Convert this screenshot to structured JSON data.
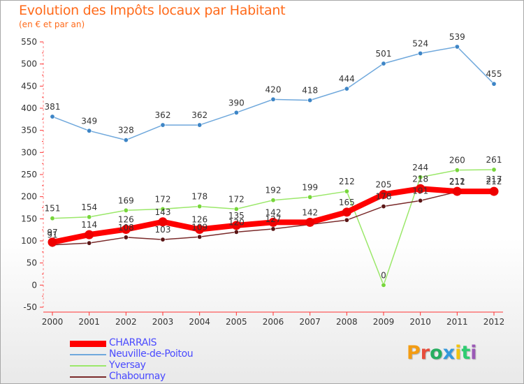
{
  "title": "Evolution des Impôts locaux par Habitant",
  "subtitle": "(en € et par an)",
  "logo": {
    "text": "Proxiti",
    "colors": [
      "#f39c12",
      "#e74c3c",
      "#27ae60",
      "#3498db",
      "#f1c40f",
      "#2ecc71",
      "#9b59b6"
    ]
  },
  "chart_data": {
    "type": "line",
    "x": [
      "2000",
      "2001",
      "2002",
      "2003",
      "2004",
      "2005",
      "2006",
      "2007",
      "2008",
      "2009",
      "2010",
      "2011",
      "2012"
    ],
    "yticks": [
      "-50",
      "0",
      "50",
      "100",
      "150",
      "200",
      "250",
      "300",
      "350",
      "400",
      "450",
      "500",
      "550"
    ],
    "ylim": [
      -50,
      550
    ],
    "grid": false,
    "legend_position": "bottom-left",
    "series": [
      {
        "name": "Neuville-de-Poitou",
        "color": "#6fa8dc",
        "point_color": "#3d85c6",
        "values": [
          381,
          349,
          328,
          362,
          362,
          390,
          420,
          418,
          444,
          501,
          524,
          539,
          455
        ],
        "labels": [
          "381",
          "349",
          "328",
          "362",
          "362",
          "390",
          "420",
          "418",
          "444",
          "501",
          "524",
          "539",
          "455"
        ]
      },
      {
        "name": "Yversay",
        "color": "#9be86a",
        "point_color": "#77d63b",
        "values": [
          151,
          154,
          169,
          172,
          178,
          172,
          192,
          199,
          212,
          0,
          244,
          260,
          261
        ],
        "labels": [
          "151",
          "154",
          "169",
          "172",
          "178",
          "172",
          "192",
          "199",
          "212",
          "0",
          "244",
          "260",
          "261"
        ]
      },
      {
        "name": "Chabournay",
        "color": "#7a2a2a",
        "point_color": "#5a1515",
        "values": [
          91,
          95,
          108,
          103,
          109,
          120,
          127,
          137,
          147,
          178,
          191,
          211,
          217
        ],
        "labels": [
          "91",
          "",
          "108",
          "103",
          "109",
          "120",
          "127",
          "",
          "",
          "178",
          "191",
          "211",
          "217"
        ]
      },
      {
        "name": "CHARRAIS",
        "color": "#ff0000",
        "point_color": "#ee0000",
        "values": [
          97,
          114,
          126,
          143,
          126,
          135,
          142,
          142,
          165,
          205,
          218,
          212,
          212
        ],
        "labels": [
          "97",
          "114",
          "126",
          "143",
          "126",
          "135",
          "142",
          "142",
          "165",
          "205",
          "218",
          "212",
          "212"
        ]
      }
    ],
    "legend_order": [
      "CHARRAIS",
      "Neuville-de-Poitou",
      "Yversay",
      "Chabournay"
    ]
  }
}
